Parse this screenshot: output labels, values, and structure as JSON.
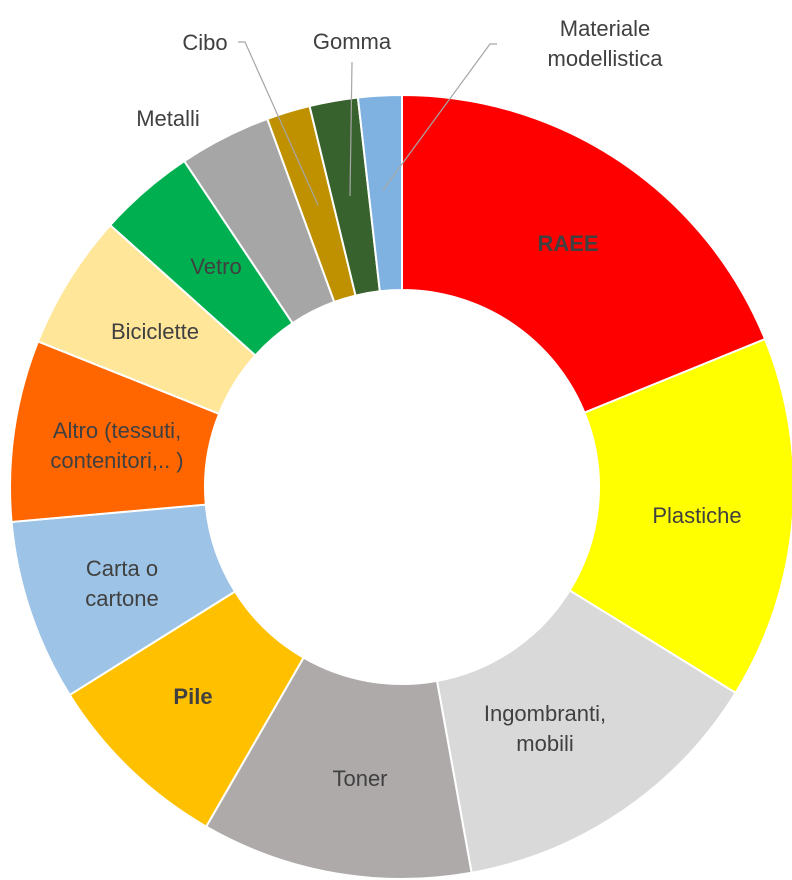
{
  "chart_data": {
    "type": "donut",
    "categories": [
      "RAEE",
      "Plastiche",
      "Ingombranti, mobili",
      "Toner",
      "Pile",
      "Carta o cartone",
      "Altro (tessuti, contenitori,.. )",
      "Biciclette",
      "Vetro",
      "Metalli",
      "Cibo",
      "Gomma",
      "Materiale modellistica"
    ],
    "values": [
      18.9,
      15,
      13.4,
      11.2,
      7.8,
      7.5,
      7.5,
      5.6,
      4,
      3.8,
      1.8,
      2,
      1.8
    ],
    "colors": [
      "#ff0000",
      "#ffff00",
      "#d9d9d9",
      "#aeaaaa",
      "#ffc000",
      "#9dc3e6",
      "#ff6600",
      "#ffe699",
      "#00b050",
      "#a6a6a6",
      "#bf9000",
      "#38622d",
      "#7fb2e0"
    ],
    "bold_labels": [
      "RAEE",
      "Pile"
    ]
  }
}
